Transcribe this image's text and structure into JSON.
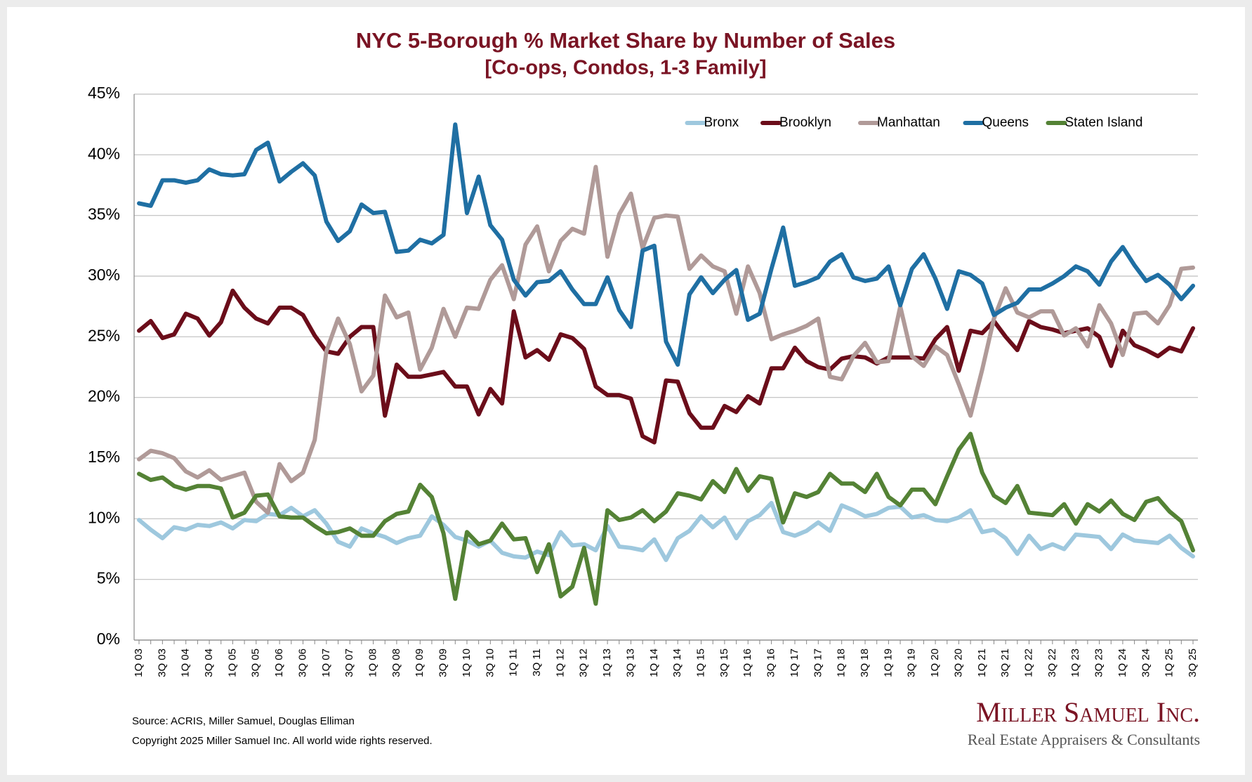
{
  "chart_data": {
    "type": "line",
    "title": "NYC 5-Borough % Market Share by Number of Sales",
    "subtitle": "[Co-ops, Condos, 1-3 Family]",
    "source": "Source: ACRIS, Miller Samuel, Douglas Elliman",
    "copyright": "Copyright 2025 Miller Samuel Inc.  All world wide rights reserved.",
    "logo": "Miller Samuel Inc.",
    "logo_tagline": "Real Estate Appraisers & Consultants",
    "legend_position": "top-right",
    "grid": true,
    "ylim": [
      0,
      45
    ],
    "yticks": [
      {
        "value": 0,
        "label": "0%"
      },
      {
        "value": 5,
        "label": "5%"
      },
      {
        "value": 10,
        "label": "10%"
      },
      {
        "value": 15,
        "label": "15%"
      },
      {
        "value": 20,
        "label": "20%"
      },
      {
        "value": 25,
        "label": "25%"
      },
      {
        "value": 30,
        "label": "30%"
      },
      {
        "value": 35,
        "label": "35%"
      },
      {
        "value": 40,
        "label": "40%"
      },
      {
        "value": 45,
        "label": "45%"
      }
    ],
    "categories": [
      "1Q 03",
      null,
      "3Q 03",
      null,
      "1Q 04",
      null,
      "3Q 04",
      null,
      "1Q 05",
      null,
      "3Q 05",
      null,
      "1Q 06",
      null,
      "3Q 06",
      null,
      "1Q 07",
      null,
      "3Q 07",
      null,
      "1Q 08",
      null,
      "3Q 08",
      null,
      "1Q 09",
      null,
      "3Q 09",
      null,
      "1Q 10",
      null,
      "3Q 10",
      null,
      "1Q 11",
      null,
      "3Q 11",
      null,
      "1Q 12",
      null,
      "3Q 12",
      null,
      "1Q 13",
      null,
      "3Q 13",
      null,
      "1Q 14",
      null,
      "3Q 14",
      null,
      "1Q 15",
      null,
      "3Q 15",
      null,
      "1Q 16",
      null,
      "3Q 16",
      null,
      "1Q 17",
      null,
      "3Q 17",
      null,
      "1Q 18",
      null,
      "3Q 18",
      null,
      "1Q 19",
      null,
      "3Q 19",
      null,
      "1Q 20",
      null,
      "3Q 20",
      null,
      "1Q 21",
      null,
      "3Q 21",
      null,
      "1Q 22",
      null,
      "3Q 22",
      null,
      "1Q 23",
      null,
      "3Q 23",
      null,
      "1Q 24",
      null,
      "3Q 24",
      null,
      "1Q 25",
      null,
      "3Q 25"
    ],
    "series": [
      {
        "name": "Bronx",
        "color": "#9ec8de",
        "values": [
          9.9,
          9.1,
          8.4,
          9.3,
          9.1,
          9.5,
          9.4,
          9.7,
          9.2,
          9.9,
          9.8,
          10.4,
          10.3,
          10.9,
          10.2,
          10.7,
          9.6,
          8.1,
          7.7,
          9.2,
          8.8,
          8.5,
          8.0,
          8.4,
          8.6,
          10.2,
          9.5,
          8.5,
          8.2,
          7.7,
          8.2,
          7.2,
          6.9,
          6.8,
          7.3,
          7.0,
          8.9,
          7.8,
          7.9,
          7.4,
          9.4,
          7.7,
          7.6,
          7.4,
          8.3,
          6.6,
          8.4,
          9.0,
          10.2,
          9.3,
          10.1,
          8.4,
          9.8,
          10.3,
          11.3,
          8.9,
          8.6,
          9.0,
          9.7,
          9.0,
          11.1,
          10.7,
          10.2,
          10.4,
          10.9,
          11.0,
          10.1,
          10.3,
          9.9,
          9.8,
          10.1,
          10.7,
          8.9,
          9.1,
          8.4,
          7.1,
          8.6,
          7.5,
          7.9,
          7.5,
          8.7,
          8.6,
          8.5,
          7.5,
          8.7,
          8.2,
          8.1,
          8.0,
          8.6,
          7.6,
          6.9
        ]
      },
      {
        "name": "Brooklyn",
        "color": "#6b0d1a",
        "values": [
          25.5,
          26.3,
          24.9,
          25.2,
          26.9,
          26.5,
          25.1,
          26.2,
          28.8,
          27.4,
          26.5,
          26.1,
          27.4,
          27.4,
          26.8,
          25.1,
          23.8,
          23.6,
          25.0,
          25.8,
          25.8,
          18.5,
          22.7,
          21.7,
          21.7,
          21.9,
          22.1,
          20.9,
          20.9,
          18.6,
          20.7,
          19.5,
          27.1,
          23.3,
          23.9,
          23.1,
          25.2,
          24.9,
          24.0,
          20.9,
          20.2,
          20.2,
          19.9,
          16.8,
          16.3,
          21.4,
          21.3,
          18.7,
          17.5,
          17.5,
          19.3,
          18.8,
          20.1,
          19.5,
          22.4,
          22.4,
          24.1,
          23.0,
          22.5,
          22.3,
          23.2,
          23.4,
          23.3,
          22.8,
          23.3,
          23.3,
          23.3,
          23.2,
          24.8,
          25.8,
          22.2,
          25.5,
          25.3,
          26.3,
          25.0,
          23.9,
          26.3,
          25.8,
          25.6,
          25.3,
          25.5,
          25.7,
          25.0,
          22.6,
          25.5,
          24.3,
          23.9,
          23.4,
          24.1,
          23.8,
          25.7
        ]
      },
      {
        "name": "Manhattan",
        "color": "#b09a98",
        "values": [
          14.9,
          15.6,
          15.4,
          15.0,
          13.9,
          13.4,
          14.0,
          13.2,
          13.5,
          13.8,
          11.4,
          10.5,
          14.5,
          13.1,
          13.8,
          16.5,
          23.8,
          26.5,
          24.4,
          20.5,
          21.8,
          28.4,
          26.6,
          27.0,
          22.3,
          24.1,
          27.3,
          25.0,
          27.4,
          27.3,
          29.7,
          30.9,
          28.1,
          32.6,
          34.1,
          30.4,
          32.9,
          33.9,
          33.5,
          39.0,
          31.6,
          35.1,
          36.8,
          32.3,
          34.8,
          35.0,
          34.9,
          30.6,
          31.7,
          30.8,
          30.4,
          26.9,
          30.8,
          28.6,
          24.8,
          25.2,
          25.5,
          25.9,
          26.5,
          21.7,
          21.5,
          23.4,
          24.5,
          22.9,
          23.0,
          27.5,
          23.4,
          22.6,
          24.2,
          23.5,
          21.1,
          18.5,
          22.3,
          26.5,
          29.0,
          27.0,
          26.6,
          27.1,
          27.1,
          25.1,
          25.7,
          24.2,
          27.6,
          26.1,
          23.5,
          26.9,
          27.0,
          26.1,
          27.6,
          30.6,
          30.7
        ]
      },
      {
        "name": "Queens",
        "color": "#1f6fa3",
        "values": [
          36.0,
          35.8,
          37.9,
          37.9,
          37.7,
          37.9,
          38.8,
          38.4,
          38.3,
          38.4,
          40.4,
          41.0,
          37.8,
          38.6,
          39.3,
          38.3,
          34.5,
          32.9,
          33.7,
          35.9,
          35.2,
          35.3,
          32.0,
          32.1,
          33.0,
          32.7,
          33.4,
          42.5,
          35.2,
          38.2,
          34.2,
          33.0,
          29.7,
          28.4,
          29.5,
          29.6,
          30.4,
          28.9,
          27.7,
          27.7,
          29.9,
          27.2,
          25.8,
          32.1,
          32.5,
          24.6,
          22.7,
          28.5,
          29.9,
          28.6,
          29.7,
          30.5,
          26.4,
          26.9,
          30.6,
          34.0,
          29.2,
          29.5,
          29.9,
          31.2,
          31.8,
          29.9,
          29.6,
          29.8,
          30.8,
          27.6,
          30.6,
          31.8,
          29.8,
          27.3,
          30.4,
          30.1,
          29.4,
          26.8,
          27.4,
          27.8,
          28.9,
          28.9,
          29.4,
          30.0,
          30.8,
          30.4,
          29.3,
          31.2,
          32.4,
          30.9,
          29.6,
          30.1,
          29.3,
          28.1,
          29.2
        ]
      },
      {
        "name": "Staten Island",
        "color": "#548235",
        "values": [
          13.7,
          13.2,
          13.4,
          12.7,
          12.4,
          12.7,
          12.7,
          12.5,
          10.1,
          10.5,
          11.9,
          12.0,
          10.2,
          10.1,
          10.1,
          9.4,
          8.8,
          8.9,
          9.2,
          8.6,
          8.6,
          9.8,
          10.4,
          10.6,
          12.8,
          11.8,
          8.8,
          3.4,
          8.9,
          7.9,
          8.2,
          9.6,
          8.3,
          8.4,
          5.6,
          7.9,
          3.6,
          4.4,
          7.6,
          3.0,
          10.7,
          9.9,
          10.1,
          10.7,
          9.8,
          10.6,
          12.1,
          11.9,
          11.6,
          13.1,
          12.2,
          14.1,
          12.3,
          13.5,
          13.3,
          9.7,
          12.1,
          11.8,
          12.2,
          13.7,
          12.9,
          12.9,
          12.2,
          13.7,
          11.8,
          11.1,
          12.4,
          12.4,
          11.2,
          13.5,
          15.7,
          17.0,
          13.8,
          11.9,
          11.3,
          12.7,
          10.5,
          10.4,
          10.3,
          11.2,
          9.6,
          11.2,
          10.6,
          11.5,
          10.4,
          9.9,
          11.4,
          11.7,
          10.6,
          9.8,
          7.4
        ]
      }
    ]
  }
}
